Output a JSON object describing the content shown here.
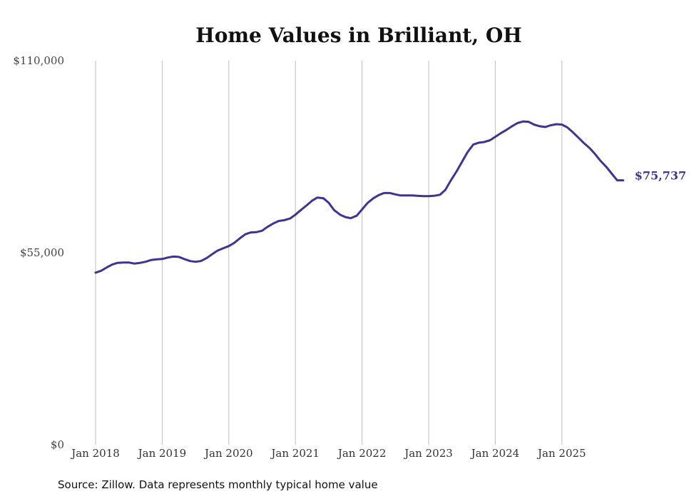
{
  "chart_data": {
    "type": "line",
    "title": "Home Values in Brilliant, OH",
    "xlabel": "",
    "ylabel": "",
    "ylim": [
      0,
      110000
    ],
    "y_ticks": [
      {
        "value": 0,
        "label": "$0"
      },
      {
        "value": 55000,
        "label": "$55,000"
      },
      {
        "value": 110000,
        "label": "$110,000"
      }
    ],
    "x_ticks": [
      {
        "value": 2018.0,
        "label": "Jan 2018"
      },
      {
        "value": 2019.0,
        "label": "Jan 2019"
      },
      {
        "value": 2020.0,
        "label": "Jan 2020"
      },
      {
        "value": 2021.0,
        "label": "Jan 2021"
      },
      {
        "value": 2022.0,
        "label": "Jan 2022"
      },
      {
        "value": 2023.0,
        "label": "Jan 2023"
      },
      {
        "value": 2024.0,
        "label": "Jan 2024"
      },
      {
        "value": 2025.0,
        "label": "Jan 2025"
      }
    ],
    "xlim": [
      2018.0,
      2025.92
    ],
    "grid": "vertical",
    "series": [
      {
        "name": "Typical home value",
        "color": "#3f3590",
        "end_label": "$75,737",
        "x": [
          2018.0,
          2018.08,
          2018.17,
          2018.25,
          2018.33,
          2018.42,
          2018.5,
          2018.58,
          2018.67,
          2018.75,
          2018.83,
          2018.92,
          2019.0,
          2019.08,
          2019.17,
          2019.25,
          2019.33,
          2019.42,
          2019.5,
          2019.58,
          2019.67,
          2019.75,
          2019.83,
          2019.92,
          2020.0,
          2020.08,
          2020.17,
          2020.25,
          2020.33,
          2020.42,
          2020.5,
          2020.58,
          2020.67,
          2020.75,
          2020.83,
          2020.92,
          2021.0,
          2021.08,
          2021.17,
          2021.25,
          2021.33,
          2021.42,
          2021.5,
          2021.58,
          2021.67,
          2021.75,
          2021.83,
          2021.92,
          2022.0,
          2022.08,
          2022.17,
          2022.25,
          2022.33,
          2022.42,
          2022.5,
          2022.58,
          2022.67,
          2022.75,
          2022.83,
          2022.92,
          2023.0,
          2023.08,
          2023.17,
          2023.25,
          2023.33,
          2023.42,
          2023.5,
          2023.58,
          2023.67,
          2023.75,
          2023.83,
          2023.92,
          2024.0,
          2024.08,
          2024.17,
          2024.25,
          2024.33,
          2024.42,
          2024.5,
          2024.58,
          2024.67,
          2024.75,
          2024.83,
          2024.92,
          2025.0,
          2025.08,
          2025.17,
          2025.25,
          2025.33,
          2025.42,
          2025.5,
          2025.58,
          2025.67,
          2025.75,
          2025.83,
          2025.92
        ],
        "values": [
          49300,
          49800,
          50800,
          51600,
          52100,
          52200,
          52200,
          51900,
          52100,
          52400,
          52900,
          53100,
          53200,
          53600,
          53900,
          53800,
          53200,
          52600,
          52400,
          52600,
          53500,
          54600,
          55600,
          56300,
          56900,
          57800,
          59200,
          60300,
          60800,
          60900,
          61300,
          62400,
          63400,
          64100,
          64300,
          64800,
          65900,
          67200,
          68600,
          69900,
          70800,
          70600,
          69300,
          67200,
          65900,
          65200,
          64900,
          65600,
          67400,
          69200,
          70600,
          71500,
          72100,
          72100,
          71700,
          71400,
          71400,
          71400,
          71300,
          71200,
          71200,
          71300,
          71600,
          73000,
          75600,
          78300,
          81000,
          83700,
          86000,
          86500,
          86700,
          87200,
          88200,
          89200,
          90200,
          91200,
          92100,
          92600,
          92500,
          91700,
          91200,
          91000,
          91500,
          91800,
          91700,
          90900,
          89400,
          87900,
          86400,
          84900,
          83200,
          81300,
          79500,
          77600,
          75737,
          75737
        ]
      }
    ]
  },
  "footer": {
    "source": "Source: Zillow. Data represents monthly typical home value"
  }
}
